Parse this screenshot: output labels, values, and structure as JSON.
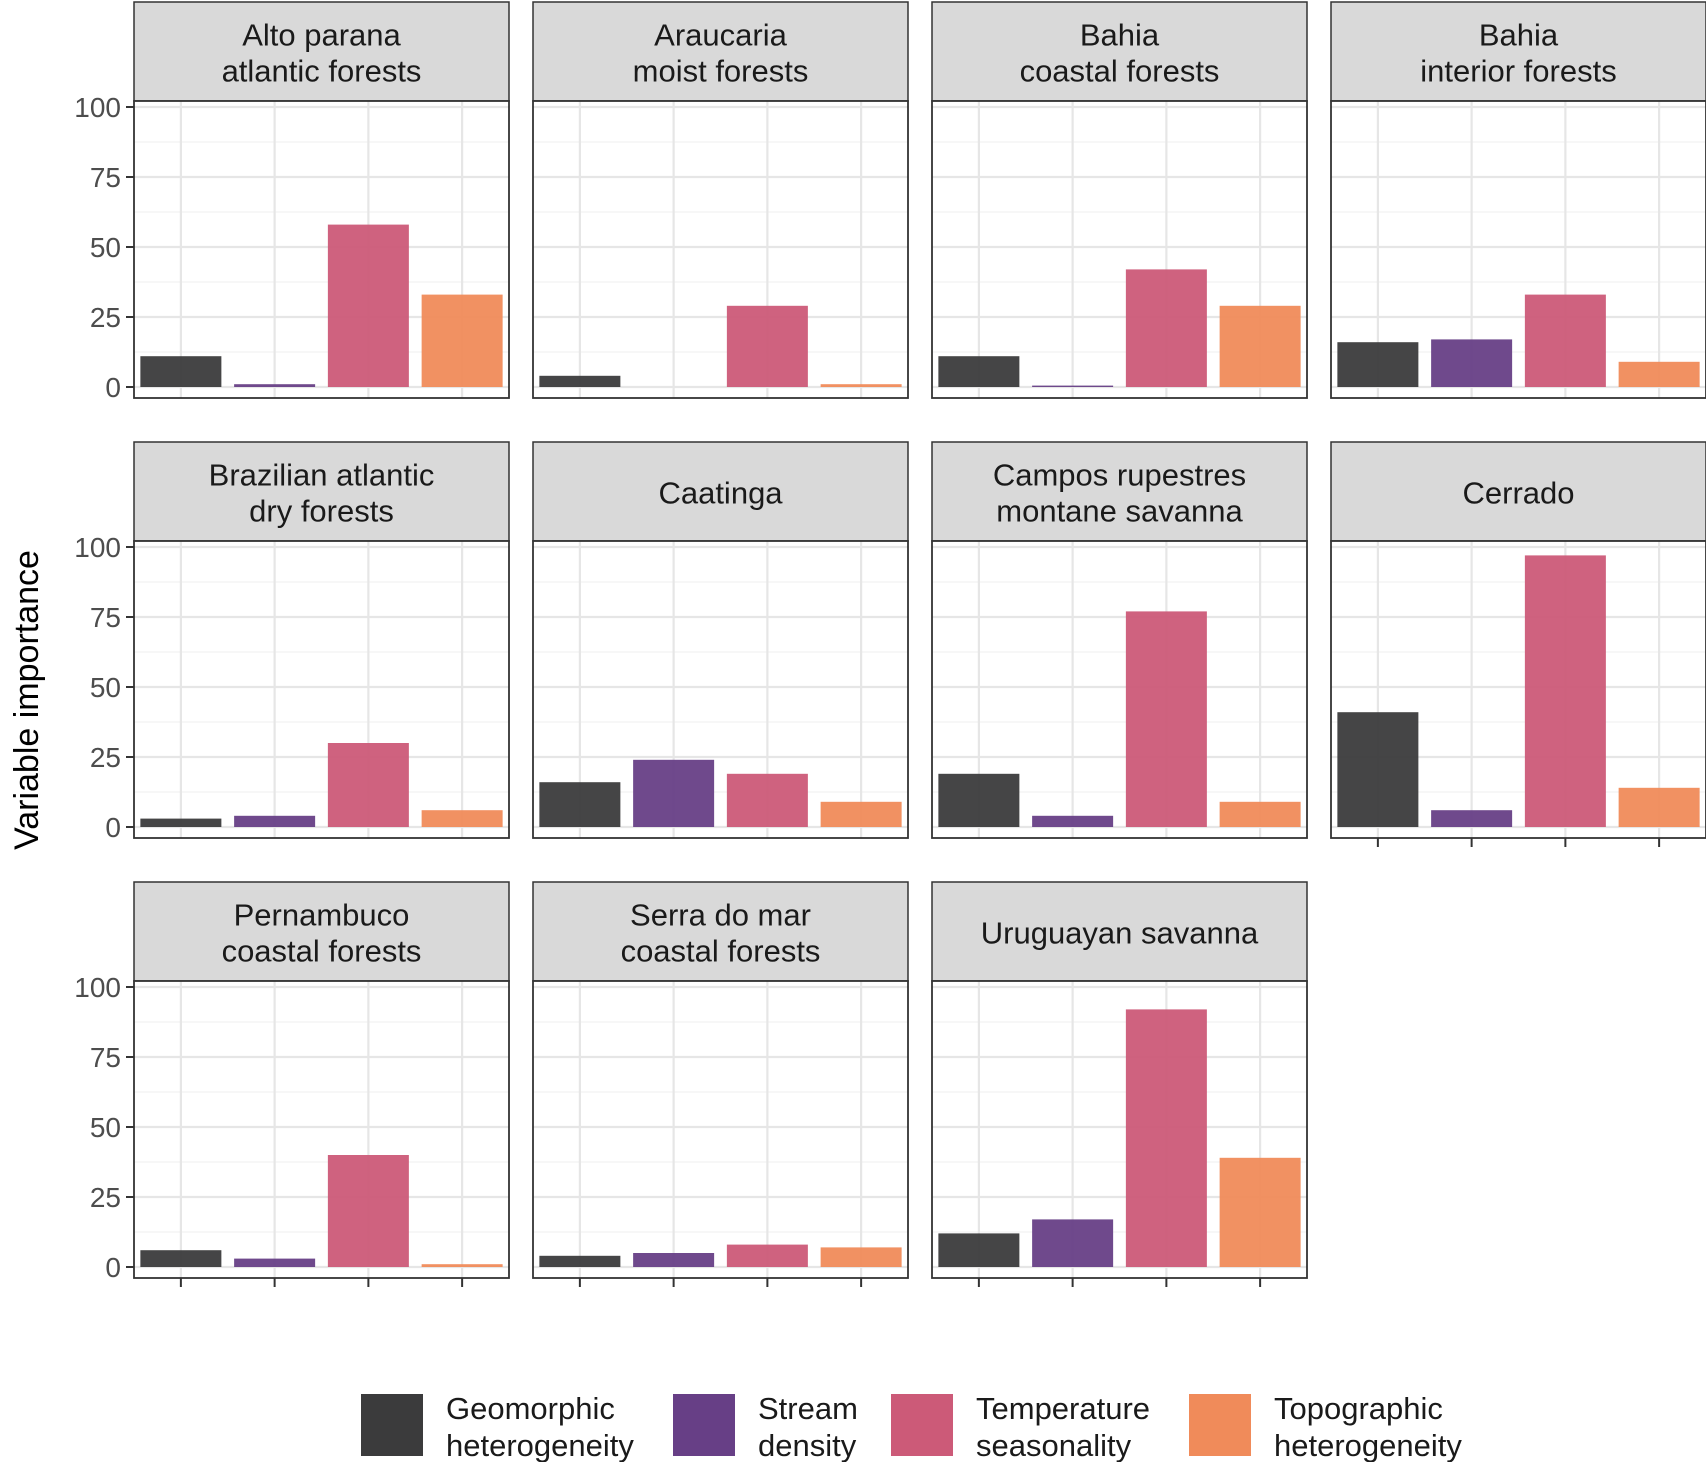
{
  "chart_data": {
    "type": "bar",
    "ylabel": "Variable importance",
    "xlabel": "",
    "ylim": [
      0,
      100
    ],
    "yticks": [
      0,
      25,
      50,
      75,
      100
    ],
    "grid": true,
    "legend_position": "bottom",
    "categories": [
      [
        "Geomorphic",
        "heterogeneity"
      ],
      [
        "Stream",
        "density"
      ],
      [
        "Temperature",
        "seasonality"
      ],
      [
        "Topographic",
        "heterogeneity"
      ]
    ],
    "colors": [
      "#3b3b3c",
      "#673f86",
      "#cc5a78",
      "#f08b5a"
    ],
    "panels": [
      {
        "title": [
          "Alto parana",
          "atlantic forests"
        ],
        "values": [
          11,
          1,
          58,
          33
        ]
      },
      {
        "title": [
          "Araucaria",
          "moist forests"
        ],
        "values": [
          4,
          0,
          29,
          1
        ]
      },
      {
        "title": [
          "Bahia",
          "coastal forests"
        ],
        "values": [
          11,
          0.5,
          42,
          29
        ]
      },
      {
        "title": [
          "Bahia",
          "interior forests"
        ],
        "values": [
          16,
          17,
          33,
          9
        ]
      },
      {
        "title": [
          "Brazilian atlantic",
          "dry forests"
        ],
        "values": [
          3,
          4,
          30,
          6
        ]
      },
      {
        "title": [
          "Caatinga"
        ],
        "values": [
          16,
          24,
          19,
          9
        ]
      },
      {
        "title": [
          "Campos rupestres",
          "montane savanna"
        ],
        "values": [
          19,
          4,
          77,
          9
        ]
      },
      {
        "title": [
          "Cerrado"
        ],
        "values": [
          41,
          6,
          97,
          14
        ]
      },
      {
        "title": [
          "Pernambuco",
          "coastal forests"
        ],
        "values": [
          6,
          3,
          40,
          1
        ]
      },
      {
        "title": [
          "Serra do mar",
          "coastal forests"
        ],
        "values": [
          4,
          5,
          8,
          7
        ]
      },
      {
        "title": [
          "Uruguayan savanna"
        ],
        "values": [
          12,
          17,
          92,
          39
        ]
      }
    ]
  }
}
